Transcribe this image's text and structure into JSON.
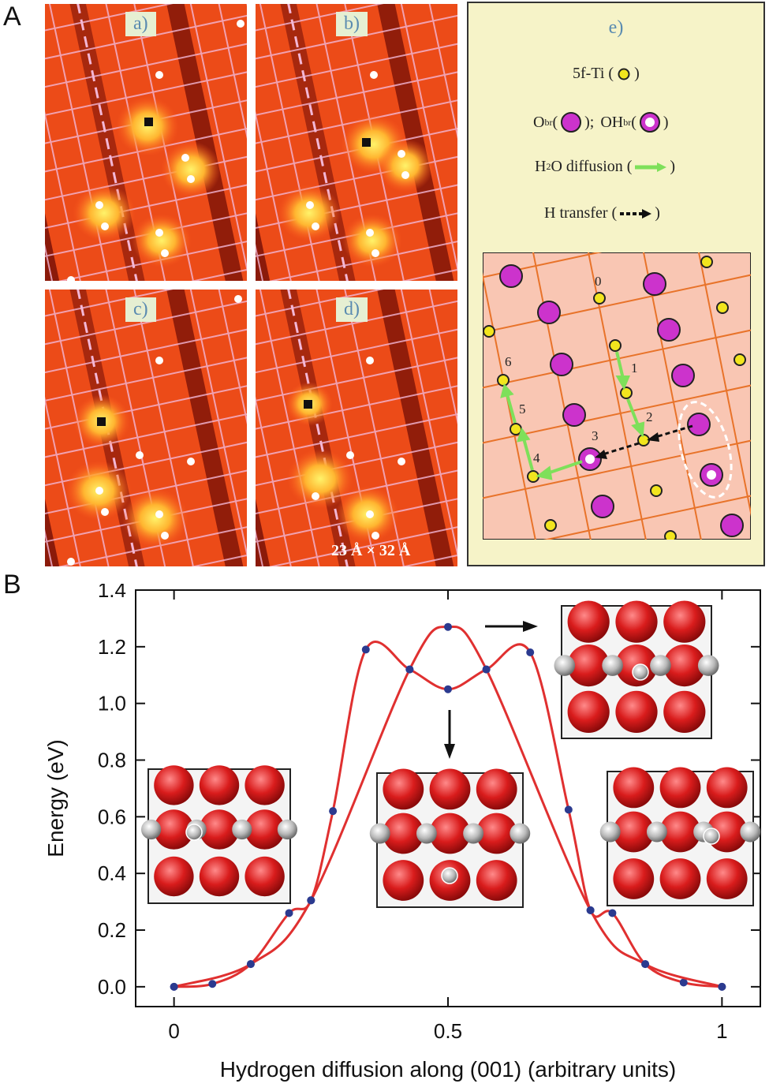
{
  "panel_A_label": "A",
  "panel_B_label": "B",
  "stm_panels": [
    {
      "label": "a)"
    },
    {
      "label": "b)"
    },
    {
      "label": "c)"
    },
    {
      "label": "d)"
    }
  ],
  "scale_bar": "23 Å × 32 Å",
  "legend": {
    "title": "e)",
    "ti_5f": "5f-Ti (",
    "ti_5f_close": ")",
    "obr": "O",
    "obr_sub": "br",
    "obr_mid": "(",
    "obr_close": ");",
    "ohbr": "OH",
    "ohbr_sub": "br",
    "ohbr_mid": "(",
    "ohbr_close": ")",
    "h2o": "H",
    "h2o_sub": "2",
    "h2o_rest": "O diffusion (",
    "h2o_close": ")",
    "htransfer": "H  transfer (",
    "htransfer_close": ")",
    "site_numbers": [
      "0",
      "1",
      "2",
      "3",
      "4",
      "5",
      "6"
    ]
  },
  "colors": {
    "ti": "#f2e51e",
    "obr": "#cc33cc",
    "diffusion_arrow": "#7ee05a",
    "lattice": "#e8732a",
    "lattice_bg": "#f9c6b3",
    "curve": "#e03030",
    "point": "#2b3a8f"
  },
  "chart_data": {
    "type": "line",
    "xlabel": "Hydrogen diffusion along (001) (arbitrary units)",
    "ylabel": "Energy (eV)",
    "xlim": [
      -0.07,
      1.07
    ],
    "ylim": [
      -0.07,
      1.4
    ],
    "x_ticks": [
      "0",
      "0.5",
      "1"
    ],
    "x_tick_values": [
      0,
      0.5,
      1
    ],
    "y_ticks": [
      "0.0",
      "0.2",
      "0.4",
      "0.6",
      "0.8",
      "1.0",
      "1.2",
      "1.4"
    ],
    "y_tick_values": [
      0,
      0.2,
      0.4,
      0.6,
      0.8,
      1.0,
      1.2,
      1.4
    ],
    "series": [
      {
        "points": [
          [
            0,
            0
          ],
          [
            0.07,
            0.01
          ],
          [
            0.14,
            0.08
          ],
          [
            0.21,
            0.26
          ],
          [
            0.25,
            0.305
          ],
          [
            0.29,
            0.62
          ],
          [
            0.35,
            1.19
          ],
          [
            0.43,
            1.12
          ],
          [
            0.5,
            1.05
          ],
          [
            0.57,
            1.12
          ],
          [
            0.65,
            1.18
          ],
          [
            0.72,
            0.625
          ],
          [
            0.76,
            0.27
          ],
          [
            0.8,
            0.26
          ],
          [
            0.86,
            0.08
          ],
          [
            0.93,
            0.015
          ],
          [
            1.0,
            0
          ]
        ]
      },
      {
        "points": [
          [
            0,
            0
          ],
          [
            0.14,
            0.08
          ],
          [
            0.25,
            0.305
          ],
          [
            0.43,
            1.12
          ],
          [
            0.5,
            1.27
          ],
          [
            0.57,
            1.12
          ],
          [
            0.76,
            0.27
          ],
          [
            0.86,
            0.08
          ],
          [
            1.0,
            0
          ]
        ]
      }
    ]
  }
}
